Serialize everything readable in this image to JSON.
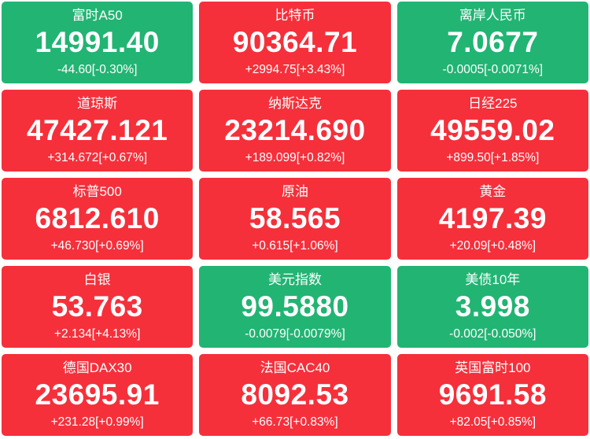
{
  "colors": {
    "up": "#f5303b",
    "down": "#22b473",
    "background": "#ffffff",
    "text": "#ffffff"
  },
  "tiles": [
    {
      "name": "富时A50",
      "value": "14991.40",
      "change": "-44.60[-0.30%]",
      "direction": "down"
    },
    {
      "name": "比特币",
      "value": "90364.71",
      "change": "+2994.75[+3.43%]",
      "direction": "up"
    },
    {
      "name": "离岸人民币",
      "value": "7.0677",
      "change": "-0.0005[-0.0071%]",
      "direction": "down"
    },
    {
      "name": "道琼斯",
      "value": "47427.121",
      "change": "+314.672[+0.67%]",
      "direction": "up"
    },
    {
      "name": "纳斯达克",
      "value": "23214.690",
      "change": "+189.099[+0.82%]",
      "direction": "up"
    },
    {
      "name": "日经225",
      "value": "49559.02",
      "change": "+899.50[+1.85%]",
      "direction": "up"
    },
    {
      "name": "标普500",
      "value": "6812.610",
      "change": "+46.730[+0.69%]",
      "direction": "up"
    },
    {
      "name": "原油",
      "value": "58.565",
      "change": "+0.615[+1.06%]",
      "direction": "up"
    },
    {
      "name": "黄金",
      "value": "4197.39",
      "change": "+20.09[+0.48%]",
      "direction": "up"
    },
    {
      "name": "白银",
      "value": "53.763",
      "change": "+2.134[+4.13%]",
      "direction": "up"
    },
    {
      "name": "美元指数",
      "value": "99.5880",
      "change": "-0.0079[-0.0079%]",
      "direction": "down"
    },
    {
      "name": "美债10年",
      "value": "3.998",
      "change": "-0.002[-0.050%]",
      "direction": "down"
    },
    {
      "name": "德国DAX30",
      "value": "23695.91",
      "change": "+231.28[+0.99%]",
      "direction": "up"
    },
    {
      "name": "法国CAC40",
      "value": "8092.53",
      "change": "+66.73[+0.83%]",
      "direction": "up"
    },
    {
      "name": "英国富时100",
      "value": "9691.58",
      "change": "+82.05[+0.85%]",
      "direction": "up"
    }
  ]
}
